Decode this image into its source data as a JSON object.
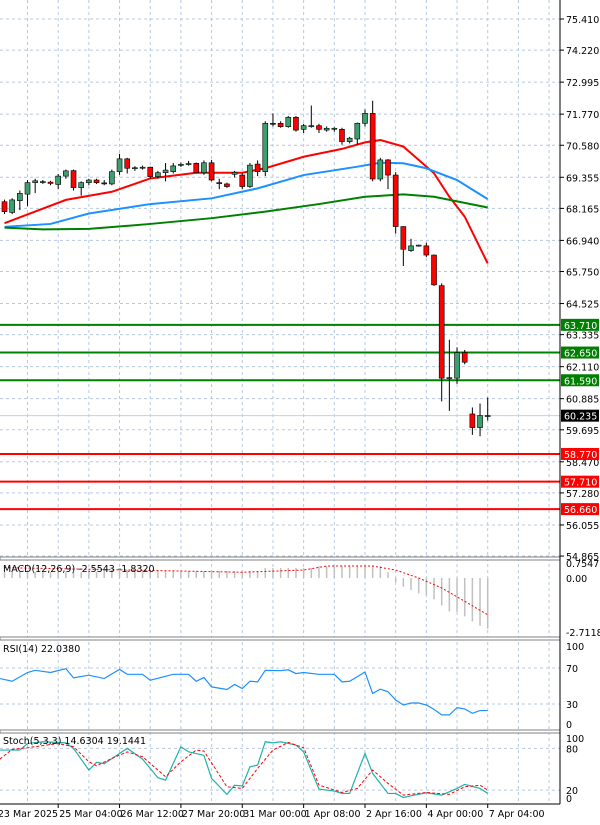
{
  "chart_data": [
    {
      "type": "candlestick",
      "panel": "main",
      "price_axis_ticks": [
        "75.410",
        "74.220",
        "72.995",
        "71.770",
        "70.580",
        "69.355",
        "68.165",
        "66.940",
        "65.750",
        "64.525",
        "63.335",
        "62.110",
        "60.885",
        "59.695",
        "58.470",
        "57.280",
        "56.055",
        "54.865"
      ],
      "ylim": [
        54.865,
        75.41
      ],
      "grid": true,
      "current_price": {
        "value": 60.235,
        "label": "60.235"
      },
      "levels": [
        {
          "value": 63.71,
          "label": "63.710",
          "color": "#008000"
        },
        {
          "value": 62.65,
          "label": "62.650",
          "color": "#008000"
        },
        {
          "value": 61.59,
          "label": "61.590",
          "color": "#008000"
        },
        {
          "value": 58.77,
          "label": "58.770",
          "color": "#ff0000"
        },
        {
          "value": 57.71,
          "label": "57.710",
          "color": "#ff0000"
        },
        {
          "value": 56.66,
          "label": "56.660",
          "color": "#ff0000"
        }
      ],
      "colors": {
        "bull": "#3c9f6e",
        "bear": "#ff0000"
      },
      "ohlc": [
        [
          68.42,
          68.5,
          67.95,
          68.04
        ],
        [
          68.01,
          68.55,
          67.95,
          68.49
        ],
        [
          68.46,
          68.85,
          68.1,
          68.74
        ],
        [
          68.71,
          69.25,
          68.25,
          69.15
        ],
        [
          69.15,
          69.3,
          68.75,
          69.22
        ],
        [
          69.19,
          69.25,
          69.1,
          69.19
        ],
        [
          69.17,
          69.22,
          69.05,
          69.12
        ],
        [
          69.08,
          69.48,
          68.9,
          69.4
        ],
        [
          69.4,
          69.65,
          69.3,
          69.6
        ],
        [
          69.61,
          69.65,
          68.85,
          68.96
        ],
        [
          68.96,
          69.2,
          68.65,
          69.15
        ],
        [
          69.15,
          69.3,
          69.05,
          69.25
        ],
        [
          69.25,
          69.3,
          69.1,
          69.15
        ],
        [
          69.14,
          69.25,
          69.05,
          69.12
        ],
        [
          69.1,
          69.65,
          69.05,
          69.57
        ],
        [
          69.57,
          70.25,
          69.45,
          70.06
        ],
        [
          70.06,
          70.1,
          69.5,
          69.7
        ],
        [
          69.7,
          69.78,
          69.6,
          69.72
        ],
        [
          69.72,
          69.8,
          69.65,
          69.74
        ],
        [
          69.74,
          69.76,
          69.3,
          69.38
        ],
        [
          69.38,
          69.6,
          69.3,
          69.53
        ],
        [
          69.53,
          69.9,
          69.2,
          69.63
        ],
        [
          69.57,
          69.9,
          69.5,
          69.79
        ],
        [
          69.83,
          69.92,
          69.75,
          69.85
        ],
        [
          69.86,
          69.98,
          69.8,
          69.88
        ],
        [
          69.89,
          69.92,
          69.5,
          69.53
        ],
        [
          69.53,
          70.0,
          69.45,
          69.91
        ],
        [
          69.91,
          70.02,
          69.2,
          69.25
        ],
        [
          69.15,
          69.3,
          68.9,
          69.14
        ],
        [
          69.1,
          69.15,
          68.95,
          69.0
        ],
        [
          69.47,
          69.6,
          69.35,
          69.54
        ],
        [
          69.44,
          69.5,
          68.9,
          69.0
        ],
        [
          69.0,
          69.9,
          68.95,
          69.82
        ],
        [
          69.86,
          70.0,
          69.4,
          69.57
        ],
        [
          69.57,
          71.5,
          69.4,
          71.42
        ],
        [
          71.42,
          71.8,
          71.3,
          71.4
        ],
        [
          71.42,
          71.5,
          71.25,
          71.29
        ],
        [
          71.29,
          71.7,
          71.25,
          71.65
        ],
        [
          71.65,
          71.7,
          71.1,
          71.16
        ],
        [
          71.19,
          71.4,
          71.05,
          71.33
        ],
        [
          71.33,
          72.1,
          71.25,
          71.33
        ],
        [
          71.33,
          71.4,
          71.05,
          71.19
        ],
        [
          71.16,
          71.3,
          71.1,
          71.23
        ],
        [
          71.23,
          71.27,
          71.1,
          71.23
        ],
        [
          71.19,
          71.25,
          70.6,
          70.72
        ],
        [
          70.72,
          70.9,
          70.65,
          70.85
        ],
        [
          70.82,
          71.45,
          70.6,
          71.42
        ],
        [
          71.42,
          71.95,
          71.3,
          71.8
        ],
        [
          71.8,
          72.28,
          69.2,
          69.29
        ],
        [
          69.29,
          70.1,
          69.2,
          70.02
        ],
        [
          70.02,
          70.05,
          68.9,
          69.44
        ],
        [
          69.44,
          69.55,
          67.2,
          67.47
        ],
        [
          67.47,
          67.48,
          65.96,
          66.6
        ],
        [
          66.55,
          67.0,
          66.5,
          66.73
        ],
        [
          66.73,
          66.78,
          66.7,
          66.76
        ],
        [
          66.73,
          66.85,
          66.3,
          66.38
        ],
        [
          66.38,
          66.4,
          65.2,
          65.24
        ],
        [
          65.21,
          65.3,
          60.78,
          61.67
        ],
        [
          61.67,
          63.14,
          60.42,
          61.69
        ],
        [
          61.67,
          62.85,
          61.45,
          62.65
        ],
        [
          62.65,
          62.75,
          62.2,
          62.28
        ],
        [
          60.3,
          60.55,
          59.5,
          59.78
        ],
        [
          59.78,
          60.7,
          59.45,
          60.24
        ],
        [
          60.24,
          60.93,
          60.05,
          60.24
        ]
      ],
      "moving_averages": [
        {
          "color": "#ff0000",
          "points": [
            [
              0,
              67.6
            ],
            [
              8,
              68.49
            ],
            [
              14,
              68.8
            ],
            [
              19,
              69.31
            ],
            [
              25,
              69.53
            ],
            [
              31,
              69.53
            ],
            [
              34,
              69.7
            ],
            [
              39,
              70.14
            ],
            [
              44,
              70.44
            ],
            [
              47,
              70.69
            ],
            [
              49,
              70.78
            ],
            [
              52,
              70.53
            ],
            [
              54,
              70.02
            ],
            [
              56,
              69.51
            ],
            [
              58,
              68.61
            ],
            [
              60,
              67.85
            ],
            [
              63,
              66.06
            ]
          ]
        },
        {
          "color": "#1e90ff",
          "points": [
            [
              0,
              67.46
            ],
            [
              6,
              67.57
            ],
            [
              11,
              67.97
            ],
            [
              19,
              68.33
            ],
            [
              27,
              68.55
            ],
            [
              33,
              68.93
            ],
            [
              39,
              69.44
            ],
            [
              46,
              69.76
            ],
            [
              49,
              69.91
            ],
            [
              52,
              69.89
            ],
            [
              55,
              69.7
            ],
            [
              59,
              69.25
            ],
            [
              63,
              68.52
            ]
          ]
        },
        {
          "color": "#008000",
          "points": [
            [
              0,
              67.43
            ],
            [
              5,
              67.36
            ],
            [
              11,
              67.38
            ],
            [
              19,
              67.57
            ],
            [
              27,
              67.79
            ],
            [
              34,
              68.04
            ],
            [
              41,
              68.33
            ],
            [
              47,
              68.61
            ],
            [
              52,
              68.7
            ],
            [
              56,
              68.61
            ],
            [
              63,
              68.2
            ]
          ]
        }
      ]
    },
    {
      "type": "bar+line",
      "panel": "macd",
      "legend": "MACD(12,26,9) -2.5543 -1.8320",
      "axis_ticks": [
        {
          "value": 0.7547,
          "label": "0.7547"
        },
        {
          "value": 0,
          "label": "0.00"
        },
        {
          "value": -2.7118,
          "label": "-2.7118"
        }
      ],
      "histogram": [
        0.3,
        0.3,
        0.3,
        0.3,
        0.3,
        0.3,
        0.3,
        0.3,
        0.3,
        0.3,
        0.3,
        0.3,
        0.3,
        0.4,
        0.4,
        0.4,
        0.4,
        0.4,
        0.4,
        0.4,
        0.4,
        0.35,
        0.35,
        0.35,
        0.35,
        0.35,
        0.35,
        0.35,
        0.35,
        0.35,
        0.35,
        0.35,
        0.35,
        0.35,
        0.5,
        0.5,
        0.5,
        0.5,
        0.5,
        0.5,
        0.5,
        0.6,
        0.6,
        0.6,
        0.6,
        0.6,
        0.6,
        0.6,
        0.6,
        0.6,
        0.3,
        -0.2,
        -0.44,
        -0.6,
        -0.77,
        -0.85,
        -1.07,
        -1.38,
        -1.68,
        -1.7,
        -1.93,
        -2.18,
        -2.4,
        -2.55
      ],
      "signal": [
        [
          0,
          0.52
        ],
        [
          31,
          0.29
        ],
        [
          39,
          0.4
        ],
        [
          42,
          0.6
        ],
        [
          48,
          0.6
        ],
        [
          51,
          0.4
        ],
        [
          54,
          0.0
        ],
        [
          57,
          -0.5
        ],
        [
          60,
          -1.17
        ],
        [
          63,
          -1.85
        ]
      ],
      "colors": {
        "histogram": "#c0c0c0",
        "signal": "#ff0000"
      }
    },
    {
      "type": "line",
      "panel": "rsi",
      "legend": "RSI(14) 22.0380",
      "axis_ticks": [
        {
          "value": 100,
          "label": "100"
        },
        {
          "value": 70,
          "label": "70"
        },
        {
          "value": 30,
          "label": "30"
        },
        {
          "value": 0,
          "label": "0"
        }
      ],
      "series": [
        [
          -0.6,
          58.3
        ],
        [
          1,
          55.3
        ],
        [
          3,
          65
        ],
        [
          4,
          67.4
        ],
        [
          6,
          65
        ],
        [
          8,
          69.3
        ],
        [
          9,
          59
        ],
        [
          11,
          62
        ],
        [
          13,
          58.3
        ],
        [
          15,
          68.5
        ],
        [
          16,
          63
        ],
        [
          18,
          63
        ],
        [
          19,
          56.4
        ],
        [
          22,
          63
        ],
        [
          24,
          63
        ],
        [
          25,
          55.3
        ],
        [
          26,
          59.4
        ],
        [
          27,
          49
        ],
        [
          29,
          46.1
        ],
        [
          30,
          51.7
        ],
        [
          31,
          47.2
        ],
        [
          32,
          55.3
        ],
        [
          33,
          54.6
        ],
        [
          34,
          67.4
        ],
        [
          36,
          67
        ],
        [
          37,
          68
        ],
        [
          38,
          63.8
        ],
        [
          39,
          65
        ],
        [
          41,
          63
        ],
        [
          43,
          63
        ],
        [
          44,
          54.6
        ],
        [
          45,
          55.3
        ],
        [
          47,
          65.6
        ],
        [
          48,
          41.7
        ],
        [
          49,
          46.5
        ],
        [
          50,
          43.6
        ],
        [
          51,
          34.4
        ],
        [
          52,
          28.9
        ],
        [
          53,
          31.1
        ],
        [
          54,
          31.1
        ],
        [
          55,
          28.9
        ],
        [
          56,
          24
        ],
        [
          57,
          17.9
        ],
        [
          58,
          17.9
        ],
        [
          59,
          26
        ],
        [
          60,
          24.5
        ],
        [
          61,
          19.7
        ],
        [
          62,
          22.7
        ],
        [
          63,
          22.7
        ]
      ],
      "color": "#1e90ff"
    },
    {
      "type": "line",
      "panel": "stochastic",
      "legend": "Stoch(5,3,3) 14.6304 19.1441",
      "axis_ticks": [
        {
          "value": 100,
          "label": "100"
        },
        {
          "value": 80,
          "label": "80"
        },
        {
          "value": 20,
          "label": "20"
        },
        {
          "value": 0,
          "label": "0"
        }
      ],
      "main": [
        [
          -0.6,
          77.6
        ],
        [
          2,
          77.6
        ],
        [
          3,
          87
        ],
        [
          5,
          89.6
        ],
        [
          8,
          88
        ],
        [
          9,
          80
        ],
        [
          11,
          48.8
        ],
        [
          12,
          60
        ],
        [
          13,
          58
        ],
        [
          16,
          80
        ],
        [
          18,
          64.6
        ],
        [
          20,
          37.8
        ],
        [
          21,
          34.4
        ],
        [
          23,
          82.4
        ],
        [
          24,
          75
        ],
        [
          26,
          70
        ],
        [
          27,
          36.8
        ],
        [
          29,
          13.8
        ],
        [
          30,
          27
        ],
        [
          31,
          26
        ],
        [
          32,
          53.6
        ],
        [
          33,
          56
        ],
        [
          34,
          89.6
        ],
        [
          35,
          88
        ],
        [
          36,
          89.6
        ],
        [
          38,
          84.8
        ],
        [
          39,
          75
        ],
        [
          41,
          21.4
        ],
        [
          43,
          18.6
        ],
        [
          44,
          15.2
        ],
        [
          45,
          15.2
        ],
        [
          47,
          72.8
        ],
        [
          48,
          44
        ],
        [
          50,
          15.2
        ],
        [
          51,
          15.2
        ],
        [
          52,
          9.4
        ],
        [
          53,
          11.8
        ],
        [
          55,
          16.2
        ],
        [
          57,
          12.8
        ],
        [
          59,
          22.4
        ],
        [
          60,
          28.2
        ],
        [
          62,
          22.4
        ],
        [
          63,
          15.2
        ]
      ],
      "signal": [
        [
          -0.6,
          64.6
        ],
        [
          1,
          78.6
        ],
        [
          3,
          81
        ],
        [
          7,
          87
        ],
        [
          9,
          82.4
        ],
        [
          11,
          60.8
        ],
        [
          12,
          55
        ],
        [
          14,
          65.6
        ],
        [
          16,
          75
        ],
        [
          18,
          68
        ],
        [
          21,
          39.2
        ],
        [
          23,
          60.8
        ],
        [
          25,
          77.6
        ],
        [
          26,
          76.2
        ],
        [
          29,
          24.8
        ],
        [
          31,
          22.4
        ],
        [
          33,
          51.2
        ],
        [
          35,
          77.6
        ],
        [
          37,
          88.6
        ],
        [
          39,
          81
        ],
        [
          41,
          27.2
        ],
        [
          44,
          16.6
        ],
        [
          46,
          22.4
        ],
        [
          48,
          48.8
        ],
        [
          50,
          29.6
        ],
        [
          52,
          12.8
        ],
        [
          55,
          16.6
        ],
        [
          58,
          13.8
        ],
        [
          60,
          24.8
        ],
        [
          62,
          27
        ],
        [
          63,
          20
        ]
      ],
      "colors": {
        "main": "#20b2aa",
        "signal": "#ff0000"
      }
    }
  ],
  "time_axis": [
    "23 Mar 2025",
    "25 Mar 04:00",
    "26 Mar 12:00",
    "27 Mar 20:00",
    "31 Mar 00:00",
    "1 Apr 08:00",
    "2 Apr 16:00",
    "4 Apr 00:00",
    "7 Apr 04:00"
  ]
}
